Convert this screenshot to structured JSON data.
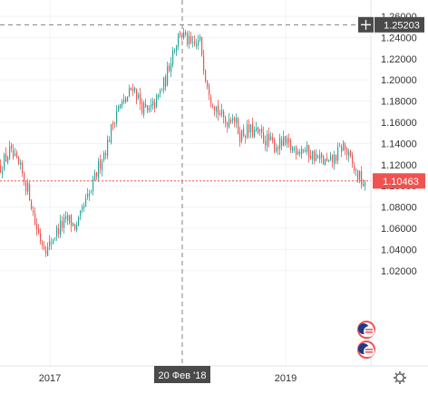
{
  "chart_data": {
    "type": "candlestick",
    "x_axis": {
      "tick_labels": [
        "2017",
        "2019"
      ],
      "crosshair_label": "20 Фев '18"
    },
    "y_axis": {
      "position": "right",
      "range": [
        1.0,
        1.265
      ],
      "tick_labels": [
        "1.26000",
        "1.24000",
        "1.22000",
        "1.20000",
        "1.18000",
        "1.16000",
        "1.14000",
        "1.12000",
        "1.10000",
        "1.08000",
        "1.06000",
        "1.04000",
        "1.02000"
      ],
      "tick_values": [
        1.26,
        1.24,
        1.22,
        1.2,
        1.18,
        1.16,
        1.14,
        1.12,
        1.1,
        1.08,
        1.06,
        1.04,
        1.02
      ]
    },
    "grid": true,
    "crosshair": {
      "price": 1.25203,
      "price_label": "1.25203"
    },
    "current_price": {
      "value": 1.10463,
      "label": "1.10463"
    },
    "colors": {
      "up": "#26a69a",
      "down": "#ef5350",
      "current_line": "#ef5350",
      "crosshair": "#808080",
      "axis_bg": "#ffffff",
      "label_bg": "#4a4a4a"
    },
    "series_path": [
      [
        0,
        1.118
      ],
      [
        10,
        1.132
      ],
      [
        22,
        1.115
      ],
      [
        32,
        1.092
      ],
      [
        38,
        1.065
      ],
      [
        45,
        1.048
      ],
      [
        52,
        1.04
      ],
      [
        58,
        1.052
      ],
      [
        66,
        1.062
      ],
      [
        75,
        1.068
      ],
      [
        84,
        1.06
      ],
      [
        92,
        1.08
      ],
      [
        100,
        1.095
      ],
      [
        108,
        1.118
      ],
      [
        118,
        1.14
      ],
      [
        128,
        1.172
      ],
      [
        138,
        1.18
      ],
      [
        146,
        1.195
      ],
      [
        154,
        1.178
      ],
      [
        162,
        1.168
      ],
      [
        172,
        1.18
      ],
      [
        182,
        1.2
      ],
      [
        190,
        1.228
      ],
      [
        198,
        1.245
      ],
      [
        205,
        1.238
      ],
      [
        212,
        1.23
      ],
      [
        220,
        1.236
      ],
      [
        226,
        1.205
      ],
      [
        232,
        1.185
      ],
      [
        240,
        1.17
      ],
      [
        248,
        1.16
      ],
      [
        256,
        1.168
      ],
      [
        264,
        1.148
      ],
      [
        272,
        1.152
      ],
      [
        282,
        1.15
      ],
      [
        292,
        1.144
      ],
      [
        302,
        1.138
      ],
      [
        312,
        1.14
      ],
      [
        322,
        1.135
      ],
      [
        332,
        1.136
      ],
      [
        342,
        1.13
      ],
      [
        352,
        1.125
      ],
      [
        362,
        1.12
      ],
      [
        370,
        1.128
      ],
      [
        378,
        1.138
      ],
      [
        385,
        1.125
      ],
      [
        392,
        1.112
      ],
      [
        398,
        1.105
      ],
      [
        402,
        1.098
      ]
    ]
  },
  "icons": [
    "currency-flags-icon",
    "currency-flags-icon",
    "gear-icon",
    "plus-icon"
  ]
}
